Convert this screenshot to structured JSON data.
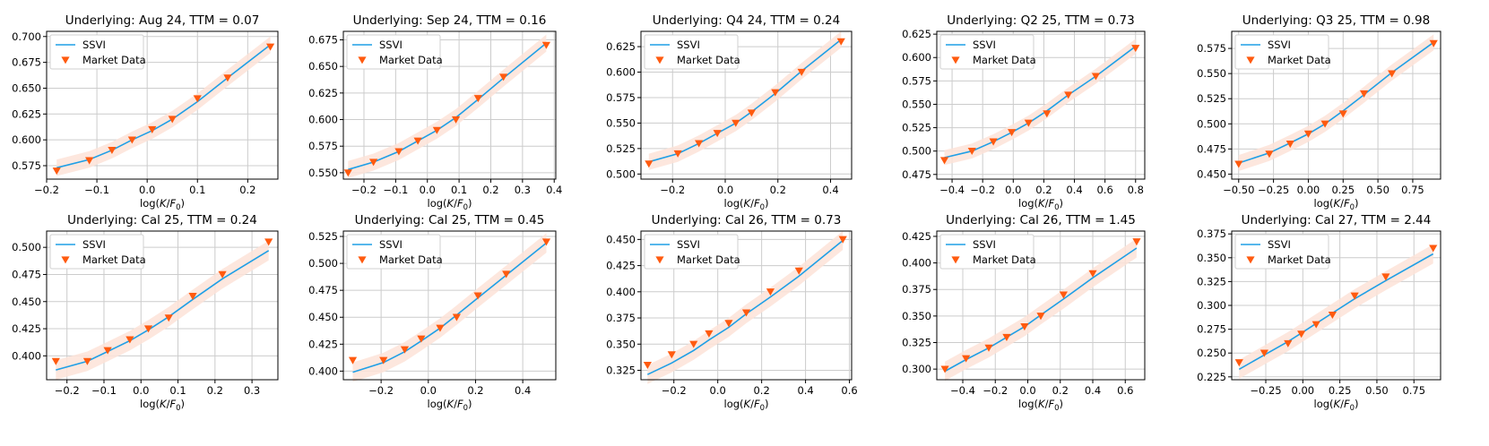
{
  "colors": {
    "ssvi_line": "#1f9fe6",
    "market_marker": "#ff5a0f",
    "band_fill": "#fde3d8",
    "grid": "#cccccc",
    "axes": "#000000"
  },
  "legend": {
    "ssvi_label": "SSVI",
    "market_label": "Market Data",
    "placement": "upper-left"
  },
  "x_axis_label": {
    "prefix": "log(",
    "K": "K",
    "slash": "/",
    "F": "F",
    "sub": "0",
    "suffix": ")"
  },
  "chart_data": [
    {
      "type": "line",
      "title": "Underlying: Aug 24, TTM = 0.07",
      "xlim": [
        -0.2,
        0.26
      ],
      "ylim": [
        0.562,
        0.705
      ],
      "xticks": [
        -0.2,
        -0.1,
        0.0,
        0.1,
        0.2
      ],
      "xtick_labels": [
        "−0.2",
        "−0.1",
        "0.0",
        "0.1",
        "0.2"
      ],
      "yticks": [
        0.575,
        0.6,
        0.625,
        0.65,
        0.675,
        0.7
      ],
      "ytick_labels": [
        "0.575",
        "0.600",
        "0.625",
        "0.650",
        "0.675",
        "0.700"
      ],
      "market": {
        "x": [
          -0.18,
          -0.115,
          -0.07,
          -0.03,
          0.01,
          0.05,
          0.1,
          0.16,
          0.245
        ],
        "y": [
          0.57,
          0.58,
          0.59,
          0.6,
          0.61,
          0.62,
          0.64,
          0.66,
          0.69
        ]
      },
      "ssvi": {
        "x": [
          -0.18,
          -0.115,
          -0.07,
          -0.03,
          0.01,
          0.05,
          0.1,
          0.16,
          0.245
        ],
        "y": [
          0.573,
          0.581,
          0.59,
          0.6,
          0.609,
          0.62,
          0.637,
          0.66,
          0.692
        ]
      },
      "band_halfwidth": 0.008
    },
    {
      "type": "line",
      "title": "Underlying: Sep 24, TTM = 0.16",
      "xlim": [
        -0.265,
        0.405
      ],
      "ylim": [
        0.544,
        0.683
      ],
      "xticks": [
        -0.2,
        -0.1,
        0.0,
        0.1,
        0.2,
        0.3,
        0.4
      ],
      "xtick_labels": [
        "−0.2",
        "−0.1",
        "0.0",
        "0.1",
        "0.2",
        "0.3",
        "0.4"
      ],
      "yticks": [
        0.55,
        0.575,
        0.6,
        0.625,
        0.65,
        0.675
      ],
      "ytick_labels": [
        "0.550",
        "0.575",
        "0.600",
        "0.625",
        "0.650",
        "0.675"
      ],
      "market": {
        "x": [
          -0.25,
          -0.17,
          -0.09,
          -0.03,
          0.03,
          0.09,
          0.16,
          0.24,
          0.375
        ],
        "y": [
          0.55,
          0.56,
          0.57,
          0.58,
          0.59,
          0.6,
          0.62,
          0.64,
          0.67
        ]
      },
      "ssvi": {
        "x": [
          -0.25,
          -0.17,
          -0.09,
          -0.03,
          0.03,
          0.09,
          0.16,
          0.24,
          0.375
        ],
        "y": [
          0.553,
          0.56,
          0.57,
          0.58,
          0.59,
          0.602,
          0.619,
          0.639,
          0.672
        ]
      },
      "band_halfwidth": 0.008
    },
    {
      "type": "line",
      "title": "Underlying: Q4 24, TTM = 0.24",
      "xlim": [
        -0.32,
        0.48
      ],
      "ylim": [
        0.495,
        0.64
      ],
      "xticks": [
        -0.2,
        0.0,
        0.2,
        0.4
      ],
      "xtick_labels": [
        "−0.2",
        "0.0",
        "0.2",
        "0.4"
      ],
      "yticks": [
        0.5,
        0.525,
        0.55,
        0.575,
        0.6,
        0.625
      ],
      "ytick_labels": [
        "0.500",
        "0.525",
        "0.550",
        "0.575",
        "0.600",
        "0.625"
      ],
      "market": {
        "x": [
          -0.29,
          -0.18,
          -0.1,
          -0.03,
          0.04,
          0.1,
          0.19,
          0.29,
          0.44
        ],
        "y": [
          0.51,
          0.52,
          0.53,
          0.54,
          0.55,
          0.56,
          0.58,
          0.6,
          0.63
        ]
      },
      "ssvi": {
        "x": [
          -0.29,
          -0.18,
          -0.1,
          -0.03,
          0.04,
          0.1,
          0.19,
          0.29,
          0.44
        ],
        "y": [
          0.512,
          0.52,
          0.53,
          0.54,
          0.55,
          0.561,
          0.579,
          0.601,
          0.632
        ]
      },
      "band_halfwidth": 0.008
    },
    {
      "type": "line",
      "title": "Underlying: Q2 25, TTM = 0.73",
      "xlim": [
        -0.5,
        0.86
      ],
      "ylim": [
        0.47,
        0.628
      ],
      "xticks": [
        -0.4,
        -0.2,
        0.0,
        0.2,
        0.4,
        0.6,
        0.8
      ],
      "xtick_labels": [
        "−0.4",
        "−0.2",
        "0.0",
        "0.2",
        "0.4",
        "0.6",
        "0.8"
      ],
      "yticks": [
        0.475,
        0.5,
        0.525,
        0.55,
        0.575,
        0.6,
        0.625
      ],
      "ytick_labels": [
        "0.475",
        "0.500",
        "0.525",
        "0.550",
        "0.575",
        "0.600",
        "0.625"
      ],
      "market": {
        "x": [
          -0.45,
          -0.27,
          -0.13,
          -0.01,
          0.1,
          0.22,
          0.36,
          0.54,
          0.8
        ],
        "y": [
          0.49,
          0.5,
          0.51,
          0.52,
          0.53,
          0.54,
          0.56,
          0.58,
          0.61
        ]
      },
      "ssvi": {
        "x": [
          -0.45,
          -0.27,
          -0.13,
          -0.01,
          0.1,
          0.22,
          0.36,
          0.54,
          0.8
        ],
        "y": [
          0.493,
          0.5,
          0.51,
          0.52,
          0.53,
          0.543,
          0.56,
          0.58,
          0.612
        ]
      },
      "band_halfwidth": 0.008
    },
    {
      "type": "line",
      "title": "Underlying: Q3 25, TTM = 0.98",
      "xlim": [
        -0.55,
        0.95
      ],
      "ylim": [
        0.445,
        0.592
      ],
      "xticks": [
        -0.5,
        -0.25,
        0.0,
        0.25,
        0.5,
        0.75
      ],
      "xtick_labels": [
        "−0.50",
        "−0.25",
        "0.00",
        "0.25",
        "0.50",
        "0.75"
      ],
      "yticks": [
        0.45,
        0.475,
        0.5,
        0.525,
        0.55,
        0.575
      ],
      "ytick_labels": [
        "0.450",
        "0.475",
        "0.500",
        "0.525",
        "0.550",
        "0.575"
      ],
      "market": {
        "x": [
          -0.5,
          -0.28,
          -0.13,
          0.0,
          0.12,
          0.25,
          0.4,
          0.6,
          0.9
        ],
        "y": [
          0.46,
          0.47,
          0.48,
          0.49,
          0.5,
          0.51,
          0.53,
          0.55,
          0.58
        ]
      },
      "ssvi": {
        "x": [
          -0.5,
          -0.28,
          -0.13,
          0.0,
          0.12,
          0.25,
          0.4,
          0.6,
          0.9
        ],
        "y": [
          0.461,
          0.471,
          0.481,
          0.49,
          0.5,
          0.513,
          0.529,
          0.551,
          0.581
        ]
      },
      "band_halfwidth": 0.008
    },
    {
      "type": "line",
      "title": "Underlying: Cal 25, TTM = 0.24",
      "xlim": [
        -0.255,
        0.37
      ],
      "ylim": [
        0.378,
        0.515
      ],
      "xticks": [
        -0.2,
        -0.1,
        0.0,
        0.1,
        0.2,
        0.3
      ],
      "xtick_labels": [
        "−0.2",
        "−0.1",
        "0.0",
        "0.1",
        "0.2",
        "0.3"
      ],
      "yticks": [
        0.4,
        0.425,
        0.45,
        0.475,
        0.5
      ],
      "ytick_labels": [
        "0.400",
        "0.425",
        "0.450",
        "0.475",
        "0.500"
      ],
      "market": {
        "x": [
          -0.23,
          -0.145,
          -0.09,
          -0.03,
          0.02,
          0.075,
          0.14,
          0.22,
          0.345
        ],
        "y": [
          0.395,
          0.395,
          0.405,
          0.415,
          0.425,
          0.435,
          0.455,
          0.475,
          0.505
        ]
      },
      "ssvi": {
        "x": [
          -0.23,
          -0.145,
          -0.09,
          -0.03,
          0.02,
          0.075,
          0.14,
          0.22,
          0.345
        ],
        "y": [
          0.387,
          0.395,
          0.404,
          0.414,
          0.424,
          0.436,
          0.452,
          0.471,
          0.497
        ]
      },
      "band_halfwidth": 0.009
    },
    {
      "type": "line",
      "title": "Underlying: Cal 25, TTM = 0.45",
      "xlim": [
        -0.36,
        0.54
      ],
      "ylim": [
        0.392,
        0.53
      ],
      "xticks": [
        -0.2,
        0.0,
        0.2,
        0.4
      ],
      "xtick_labels": [
        "−0.2",
        "0.0",
        "0.2",
        "0.4"
      ],
      "yticks": [
        0.4,
        0.425,
        0.45,
        0.475,
        0.5,
        0.525
      ],
      "ytick_labels": [
        "0.400",
        "0.425",
        "0.450",
        "0.475",
        "0.500",
        "0.525"
      ],
      "market": {
        "x": [
          -0.32,
          -0.19,
          -0.1,
          -0.03,
          0.05,
          0.12,
          0.21,
          0.33,
          0.5
        ],
        "y": [
          0.41,
          0.41,
          0.42,
          0.43,
          0.44,
          0.45,
          0.47,
          0.49,
          0.52
        ]
      },
      "ssvi": {
        "x": [
          -0.32,
          -0.19,
          -0.1,
          -0.03,
          0.05,
          0.12,
          0.21,
          0.33,
          0.5
        ],
        "y": [
          0.399,
          0.408,
          0.418,
          0.428,
          0.44,
          0.452,
          0.468,
          0.489,
          0.519
        ]
      },
      "band_halfwidth": 0.009
    },
    {
      "type": "line",
      "title": "Underlying: Cal 26, TTM = 0.73",
      "xlim": [
        -0.35,
        0.61
      ],
      "ylim": [
        0.316,
        0.458
      ],
      "xticks": [
        -0.2,
        0.0,
        0.2,
        0.4,
        0.6
      ],
      "xtick_labels": [
        "−0.2",
        "0.0",
        "0.2",
        "0.4",
        "0.6"
      ],
      "yticks": [
        0.325,
        0.35,
        0.375,
        0.4,
        0.425,
        0.45
      ],
      "ytick_labels": [
        "0.325",
        "0.350",
        "0.375",
        "0.400",
        "0.425",
        "0.450"
      ],
      "market": {
        "x": [
          -0.32,
          -0.21,
          -0.11,
          -0.04,
          0.05,
          0.13,
          0.24,
          0.37,
          0.57
        ],
        "y": [
          0.33,
          0.34,
          0.35,
          0.36,
          0.37,
          0.38,
          0.4,
          0.42,
          0.45
        ]
      },
      "ssvi": {
        "x": [
          -0.32,
          -0.21,
          -0.11,
          -0.04,
          0.05,
          0.13,
          0.24,
          0.37,
          0.57
        ],
        "y": [
          0.321,
          0.332,
          0.344,
          0.354,
          0.366,
          0.379,
          0.395,
          0.415,
          0.449
        ]
      },
      "band_halfwidth": 0.009
    },
    {
      "type": "line",
      "title": "Underlying: Cal 26, TTM = 1.45",
      "xlim": [
        -0.56,
        0.72
      ],
      "ylim": [
        0.29,
        0.43
      ],
      "xticks": [
        -0.4,
        -0.2,
        0.0,
        0.2,
        0.4,
        0.6
      ],
      "xtick_labels": [
        "−0.4",
        "−0.2",
        "0.0",
        "0.2",
        "0.4",
        "0.6"
      ],
      "yticks": [
        0.3,
        0.325,
        0.35,
        0.375,
        0.4,
        0.425
      ],
      "ytick_labels": [
        "0.300",
        "0.325",
        "0.350",
        "0.375",
        "0.400",
        "0.425"
      ],
      "market": {
        "x": [
          -0.51,
          -0.38,
          -0.24,
          -0.13,
          -0.02,
          0.08,
          0.22,
          0.4,
          0.67
        ],
        "y": [
          0.3,
          0.31,
          0.32,
          0.33,
          0.34,
          0.35,
          0.37,
          0.39,
          0.42
        ]
      },
      "ssvi": {
        "x": [
          -0.51,
          -0.38,
          -0.24,
          -0.13,
          -0.02,
          0.08,
          0.22,
          0.4,
          0.67
        ],
        "y": [
          0.298,
          0.309,
          0.32,
          0.33,
          0.34,
          0.351,
          0.366,
          0.386,
          0.414
        ]
      },
      "band_halfwidth": 0.009
    },
    {
      "type": "line",
      "title": "Underlying: Cal 27, TTM = 2.44",
      "xlim": [
        -0.48,
        0.93
      ],
      "ylim": [
        0.222,
        0.378
      ],
      "xticks": [
        -0.25,
        0.0,
        0.25,
        0.5,
        0.75
      ],
      "xtick_labels": [
        "−0.25",
        "0.00",
        "0.25",
        "0.50",
        "0.75"
      ],
      "yticks": [
        0.225,
        0.25,
        0.275,
        0.3,
        0.325,
        0.35,
        0.375
      ],
      "ytick_labels": [
        "0.225",
        "0.250",
        "0.275",
        "0.300",
        "0.325",
        "0.350",
        "0.375"
      ],
      "market": {
        "x": [
          -0.43,
          -0.26,
          -0.1,
          -0.01,
          0.09,
          0.2,
          0.35,
          0.56,
          0.88
        ],
        "y": [
          0.24,
          0.25,
          0.26,
          0.27,
          0.28,
          0.29,
          0.31,
          0.33,
          0.36
        ]
      },
      "ssvi": {
        "x": [
          -0.43,
          -0.26,
          -0.1,
          -0.01,
          0.09,
          0.2,
          0.35,
          0.56,
          0.88
        ],
        "y": [
          0.233,
          0.248,
          0.262,
          0.271,
          0.281,
          0.292,
          0.307,
          0.326,
          0.354
        ]
      },
      "band_halfwidth": 0.01
    }
  ]
}
